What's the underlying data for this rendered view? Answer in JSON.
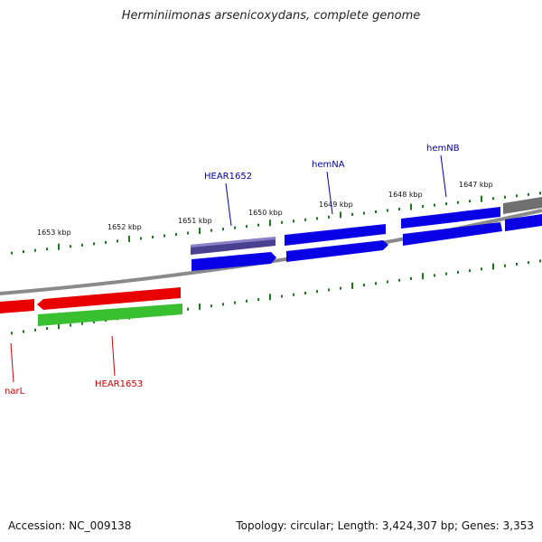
{
  "title": "Herminiimonas arsenicoxydans, complete genome",
  "footer": {
    "accession": "Accession: NC_009138",
    "topology": "Topology: circular; Length: 3,424,307 bp; Genes: 3,353"
  },
  "colors": {
    "forward_gene": "#0a00e6",
    "hypothetical_forward": "#4a4090",
    "reverse_gene": "#e80000",
    "reverse_hypothetical": "#38c030",
    "other_gene": "#707070",
    "backbone": "#8a8a8a",
    "ticks": "#1a7a1a",
    "label_forward": "#0000aa",
    "label_reverse": "#cc0000"
  },
  "scale": {
    "unit": "kbp",
    "labels": [
      "1653 kbp",
      "1652 kbp",
      "1651 kbp",
      "1650 kbp",
      "1649 kbp",
      "1648 kbp",
      "1647 kbp"
    ]
  },
  "genes": {
    "forward": [
      {
        "name": "HEAR1652",
        "color": "hypothetical_forward"
      },
      {
        "name": "hemNA",
        "color": "forward_gene"
      },
      {
        "name": "hemNB",
        "color": "forward_gene"
      }
    ],
    "reverse": [
      {
        "name": "narL",
        "color": "reverse_gene"
      },
      {
        "name": "HEAR1653",
        "color": "reverse_hypothetical"
      }
    ]
  }
}
